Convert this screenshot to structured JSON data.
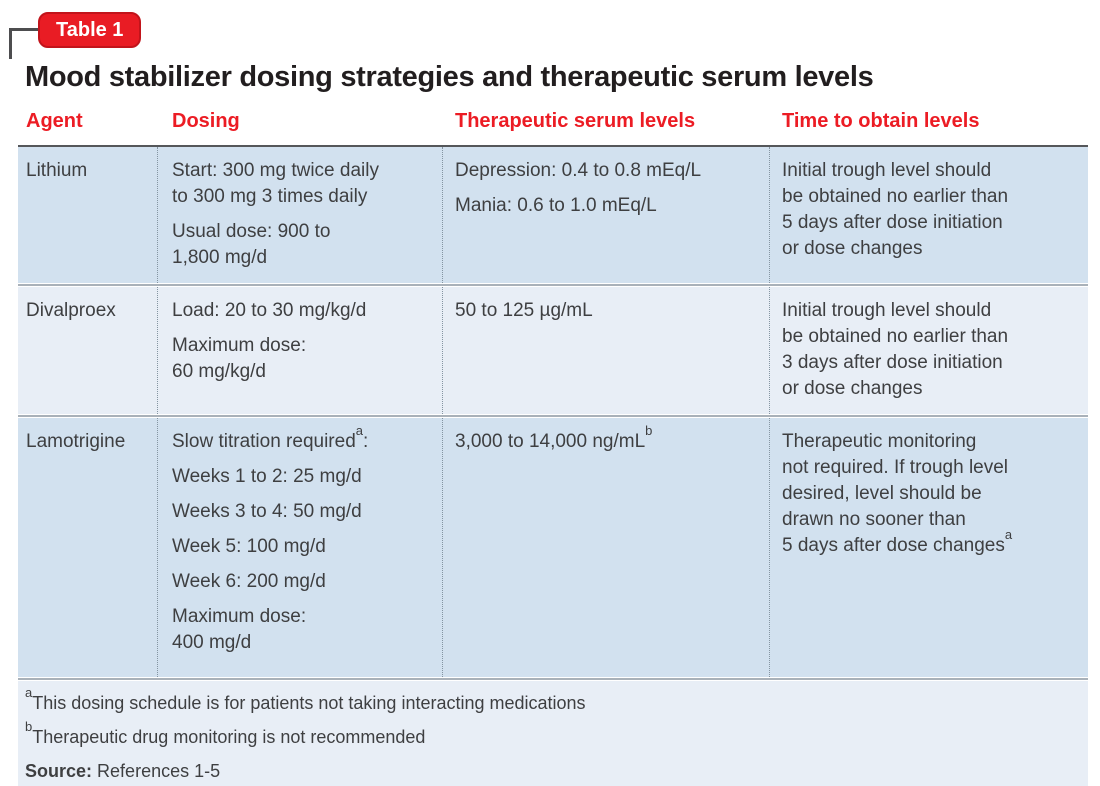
{
  "colors": {
    "accent_red": "#ec1c24",
    "row_blue_dark": "#d2e1ef",
    "row_blue_light": "#e8eef6",
    "header_rule_gray": "#55575a"
  },
  "badge": {
    "label": "Table 1"
  },
  "title": "Mood stabilizer dosing strategies and therapeutic serum levels",
  "header": {
    "agent": "Agent",
    "dosing": "Dosing",
    "serum": "Therapeutic serum levels",
    "time": "Time to obtain levels"
  },
  "rows": [
    {
      "agent": "Lithium",
      "dosing": [
        "Start: 300 mg twice daily\nto 300 mg 3 times daily",
        "Usual dose: 900 to\n1,800 mg/d"
      ],
      "serum": [
        "Depression: 0.4 to 0.8 mEq/L",
        "Mania: 0.6 to 1.0 mEq/L"
      ],
      "time": "Initial trough level should\nbe obtained no earlier than\n5 days after dose initiation\nor dose changes"
    },
    {
      "agent": "Divalproex",
      "dosing": [
        "Load: 20 to 30 mg/kg/d",
        "Maximum dose:\n60 mg/kg/d"
      ],
      "serum": [
        "50 to 125 µg/mL"
      ],
      "time": "Initial trough level should\nbe obtained no earlier than\n3 days after dose initiation\nor dose changes"
    },
    {
      "agent": "Lamotrigine",
      "dosing_intro": {
        "text": "Slow titration required",
        "sup": "a",
        "after": ":"
      },
      "dosing": [
        "Weeks 1 to 2: 25 mg/d",
        "Weeks 3 to 4: 50 mg/d",
        "Week 5: 100 mg/d",
        "Week 6: 200 mg/d",
        "Maximum dose:\n400 mg/d"
      ],
      "serum_sup": {
        "text": "3,000 to 14,000 ng/mL",
        "sup": "b"
      },
      "time_sup": {
        "text": "Therapeutic monitoring\nnot required. If trough level\ndesired, level should be\ndrawn no sooner than\n5 days after dose changes",
        "sup": "a"
      }
    }
  ],
  "footnotes": [
    {
      "sup": "a",
      "text": "This dosing schedule is for patients not taking interacting medications"
    },
    {
      "sup": "b",
      "text": "Therapeutic drug monitoring is not recommended"
    }
  ],
  "source": {
    "label": "Source:",
    "text": "References 1-5"
  }
}
